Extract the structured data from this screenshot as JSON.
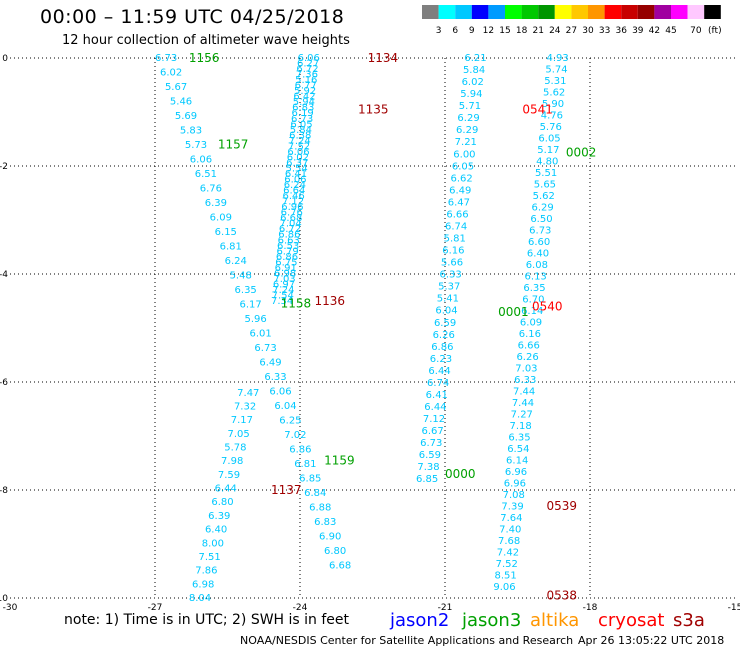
{
  "title": "00:00 – 11:59 UTC 04/25/2018",
  "subtitle": "12 hour collection of altimeter wave heights",
  "colorbar": {
    "colors": [
      "#7f7f7f",
      "#00ffff",
      "#00c8ff",
      "#0000ff",
      "#009bff",
      "#00ff00",
      "#00c800",
      "#009600",
      "#ffff00",
      "#ffc800",
      "#ff9600",
      "#ff0000",
      "#c80000",
      "#960000",
      "#a000a0",
      "#ff00ff",
      "#ffc8ff",
      "#000000"
    ],
    "labels": [
      "3",
      "6",
      "9",
      "12",
      "15",
      "18",
      "21",
      "24",
      "27",
      "30",
      "33",
      "36",
      "39",
      "42",
      "45",
      "70"
    ],
    "unit": "(ft)"
  },
  "axes": {
    "x_ticks": [
      "-30",
      "-27",
      "-24",
      "-21",
      "-18",
      "-15"
    ],
    "y_ticks": [
      "0",
      "-2",
      "-4",
      "-6",
      "-8",
      "-10"
    ]
  },
  "tracks": {
    "colors": {
      "cyan": "#00c8ff",
      "blue": "#0000ff",
      "green": "#00a000",
      "darkred": "#a00000",
      "red": "#ff0000",
      "navy": "#000080"
    },
    "labels": [
      {
        "text": "1156",
        "lon": -26.3,
        "lat": 0.0,
        "color": "green"
      },
      {
        "text": "1134",
        "lon": -22.6,
        "lat": 0.0,
        "color": "darkred"
      },
      {
        "text": "1135",
        "lon": -22.8,
        "lat": -0.95,
        "color": "darkred"
      },
      {
        "text": "1157",
        "lon": -25.7,
        "lat": -1.6,
        "color": "green"
      },
      {
        "text": "0541",
        "lon": -19.4,
        "lat": -0.95,
        "color": "red"
      },
      {
        "text": "0002",
        "lon": -18.5,
        "lat": -1.75,
        "color": "green"
      },
      {
        "text": "1158",
        "lon": -24.4,
        "lat": -4.55,
        "color": "green"
      },
      {
        "text": "1136",
        "lon": -23.7,
        "lat": -4.5,
        "color": "darkred"
      },
      {
        "text": "0001",
        "lon": -19.9,
        "lat": -4.7,
        "color": "green"
      },
      {
        "text": "0540",
        "lon": -19.2,
        "lat": -4.6,
        "color": "red"
      },
      {
        "text": "1159",
        "lon": -23.5,
        "lat": -7.45,
        "color": "green"
      },
      {
        "text": "0000",
        "lon": -21.0,
        "lat": -7.7,
        "color": "green"
      },
      {
        "text": "1137",
        "lon": -24.6,
        "lat": -8.0,
        "color": "darkred"
      },
      {
        "text": "0539",
        "lon": -18.9,
        "lat": -8.3,
        "color": "darkred"
      },
      {
        "text": "0538",
        "lon": -18.9,
        "lat": -9.95,
        "color": "darkred"
      }
    ],
    "track1_values": [
      "6.73",
      "6.02",
      "5.67",
      "5.46",
      "5.69",
      "5.83",
      "5.73",
      "6.06",
      "6.51",
      "6.76",
      "6.39",
      "6.09",
      "6.15",
      "6.81",
      "6.24",
      "5.48",
      "6.35",
      "6.17",
      "5.96",
      "6.01",
      "6.73",
      "6.49",
      "6.33",
      "6.06",
      "6.04",
      "6.25",
      "7.02",
      "6.86",
      "6.81",
      "6.85",
      "6.84",
      "6.88",
      "6.83",
      "6.90",
      "6.80",
      "6.68"
    ],
    "track2_values": [
      "6.06",
      "6.27",
      "6.72",
      "7.36",
      "5.16",
      "6.77",
      "5.92",
      "6.42",
      "5.94",
      "6.83",
      "6.19",
      "6.73",
      "6.05",
      "5.84",
      "6.38",
      "7.24",
      "7.52",
      "6.06",
      "6.02",
      "6.37",
      "5.54",
      "6.41",
      "6.06",
      "6.24",
      "6.64",
      "6.46",
      "7.12",
      "6.96",
      "6.76",
      "6.68",
      "7.04",
      "6.72",
      "6.86",
      "6.63",
      "6.53",
      "6.79",
      "6.86",
      "6.75",
      "6.91",
      "6.98",
      "7.03",
      "6.97",
      "7.24",
      "7.54",
      "7.34"
    ],
    "track3_values": [
      "7.47",
      "7.32",
      "7.17",
      "7.05",
      "5.78",
      "7.98",
      "7.59",
      "6.44",
      "6.80",
      "6.39",
      "6.40",
      "8.00",
      "7.51",
      "7.86",
      "6.98",
      "8.04"
    ],
    "track4_values": [
      "6.21",
      "5.84",
      "6.02",
      "5.94",
      "5.71",
      "6.29",
      "6.29",
      "7.21",
      "6.00",
      "6.05",
      "6.62",
      "6.49",
      "6.47",
      "6.66",
      "6.74",
      "5.81",
      "6.16",
      "5.66",
      "6.33",
      "5.37",
      "5.41",
      "6.04",
      "6.59",
      "6.26",
      "6.86",
      "6.23",
      "6.44",
      "6.74",
      "6.41",
      "6.44",
      "7.12",
      "6.67",
      "6.73",
      "6.59",
      "7.38",
      "6.85"
    ],
    "track5_values": [
      "4.93",
      "5.74",
      "5.31",
      "5.62",
      "5.90",
      "4.76",
      "5.76",
      "6.05",
      "5.17",
      "4.80",
      "5.51",
      "5.65",
      "5.62",
      "6.29",
      "6.50",
      "6.73",
      "6.60",
      "6.40",
      "6.08",
      "6.13",
      "6.35",
      "6.70",
      "6.14",
      "6.09",
      "6.16",
      "6.66",
      "6.26",
      "7.03",
      "6.33",
      "7.44",
      "7.44",
      "7.27",
      "7.18",
      "6.35",
      "6.54",
      "6.14",
      "6.96",
      "6.96",
      "7.08",
      "7.39",
      "7.64",
      "7.40",
      "7.68",
      "7.42",
      "7.52",
      "8.51",
      "9.06"
    ]
  },
  "note": "note: 1) Time is in UTC; 2) SWH is in feet",
  "legend": [
    {
      "name": "jason2",
      "color": "#0000ff"
    },
    {
      "name": "jason3",
      "color": "#00a000"
    },
    {
      "name": "altika",
      "color": "#ff9600"
    },
    {
      "name": "cryosat",
      "color": "#ff0000"
    },
    {
      "name": "s3a",
      "color": "#a00000"
    }
  ],
  "credit": "NOAA/NESDIS Center for Satellite Applications and Research",
  "stamp": "Apr 26 13:05:22 UTC 2018"
}
